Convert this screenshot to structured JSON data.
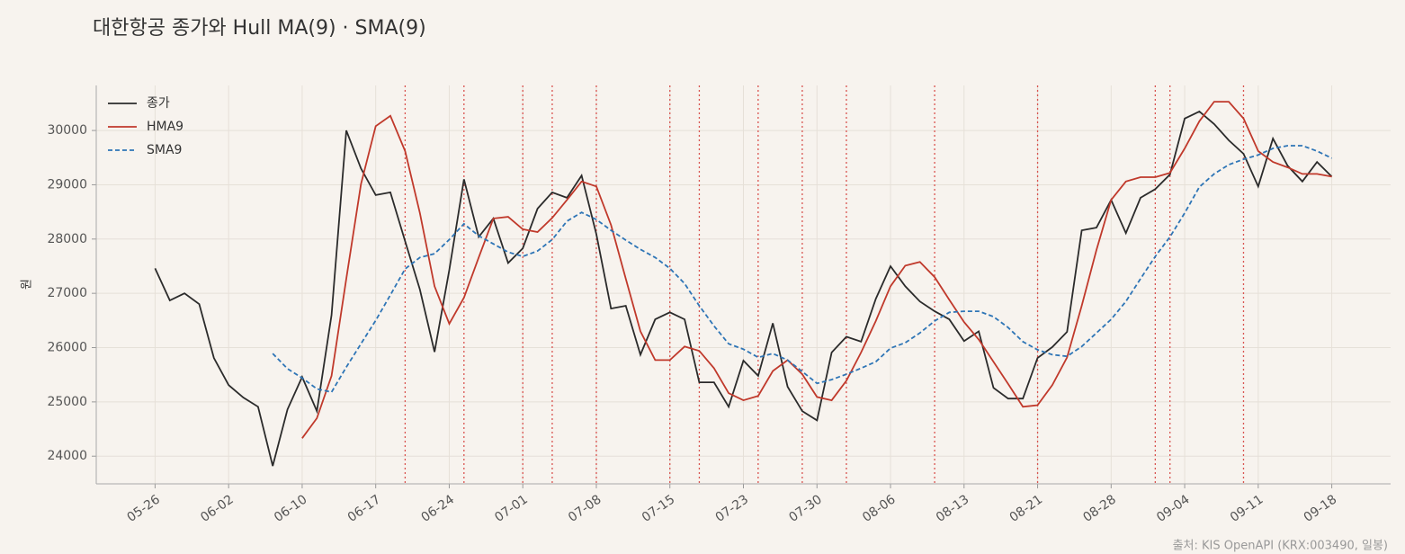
{
  "chart_data": {
    "type": "line",
    "title": "대한항공 종가와 Hull MA(9) · SMA(9)",
    "ylabel": "원",
    "source": "출처: KIS OpenAPI (KRX:003490, 일봉)",
    "categories": [
      "05-26",
      null,
      null,
      null,
      null,
      "06-02",
      null,
      null,
      null,
      null,
      "06-10",
      null,
      null,
      null,
      null,
      "06-17",
      null,
      null,
      null,
      null,
      "06-24",
      null,
      null,
      null,
      null,
      "07-01",
      null,
      null,
      null,
      null,
      "07-08",
      null,
      null,
      null,
      null,
      "07-15",
      null,
      null,
      null,
      null,
      "07-23",
      null,
      null,
      null,
      null,
      "07-30",
      null,
      null,
      null,
      null,
      "08-06",
      null,
      null,
      null,
      null,
      "08-13",
      null,
      null,
      null,
      null,
      "08-21",
      null,
      null,
      null,
      null,
      "08-28",
      null,
      null,
      null,
      null,
      "09-04",
      null,
      null,
      null,
      null,
      "09-11",
      null,
      null,
      null,
      null,
      "09-18"
    ],
    "ylim": [
      23490,
      30830
    ],
    "yticks": [
      24000,
      25000,
      26000,
      27000,
      28000,
      29000,
      30000
    ],
    "grid": true,
    "legend": "upper left",
    "signal_color": "#d9534f",
    "signals": [
      17,
      21,
      25,
      27,
      30,
      35,
      37,
      41,
      44,
      47,
      53,
      60,
      68,
      69,
      74
    ],
    "series": [
      {
        "name": "종가",
        "color": "#2b2b2b",
        "linestyle": "solid",
        "values": [
          27460,
          26870,
          27000,
          26800,
          25810,
          25310,
          25080,
          24910,
          23820,
          24860,
          25460,
          24830,
          26600,
          30000,
          29300,
          28810,
          28860,
          27960,
          27070,
          25920,
          27430,
          29100,
          28040,
          28380,
          27560,
          27830,
          28560,
          28860,
          28760,
          29170,
          28090,
          26720,
          26770,
          25870,
          26520,
          26650,
          26520,
          25360,
          25360,
          24910,
          25760,
          25480,
          26450,
          25280,
          24830,
          24660,
          25910,
          26200,
          26110,
          26900,
          27500,
          27130,
          26850,
          26670,
          26520,
          26120,
          26300,
          25260,
          25060,
          25060,
          25810,
          26010,
          26290,
          28160,
          28210,
          28720,
          28110,
          28760,
          28920,
          29190,
          30220,
          30350,
          30120,
          29820,
          29570,
          28970,
          29850,
          29350,
          29060,
          29420,
          29150
        ]
      },
      {
        "name": "HMA9",
        "color": "#c0392b",
        "linestyle": "solid",
        "values": [
          null,
          null,
          null,
          null,
          null,
          null,
          null,
          null,
          null,
          null,
          24330,
          24700,
          25480,
          27270,
          29010,
          30080,
          30270,
          29620,
          28480,
          27130,
          26440,
          26920,
          27660,
          28380,
          28410,
          28180,
          28130,
          28390,
          28720,
          29060,
          28970,
          28260,
          27270,
          26300,
          25770,
          25770,
          26020,
          25940,
          25620,
          25160,
          25030,
          25110,
          25570,
          25770,
          25510,
          25090,
          25030,
          25390,
          25910,
          26490,
          27130,
          27510,
          27580,
          27300,
          26880,
          26470,
          26150,
          25740,
          25330,
          24910,
          24940,
          25310,
          25820,
          26770,
          27800,
          28720,
          29060,
          29140,
          29140,
          29220,
          29670,
          30170,
          30530,
          30530,
          30220,
          29620,
          29420,
          29320,
          29200,
          29200,
          29150
        ]
      },
      {
        "name": "SMA9",
        "color": "#2e75b6",
        "linestyle": "dashed",
        "values": [
          null,
          null,
          null,
          null,
          null,
          null,
          null,
          null,
          25890,
          25610,
          25440,
          25240,
          25180,
          25640,
          26070,
          26500,
          26970,
          27450,
          27660,
          27730,
          27990,
          28280,
          28060,
          27910,
          27760,
          27680,
          27780,
          27990,
          28330,
          28490,
          28360,
          28160,
          27980,
          27810,
          27660,
          27460,
          27180,
          26770,
          26400,
          26070,
          25970,
          25820,
          25890,
          25770,
          25560,
          25340,
          25410,
          25510,
          25620,
          25740,
          25990,
          26090,
          26270,
          26490,
          26650,
          26670,
          26670,
          26570,
          26370,
          26110,
          25960,
          25870,
          25840,
          26020,
          26270,
          26520,
          26850,
          27270,
          27680,
          28040,
          28480,
          28960,
          29200,
          29370,
          29470,
          29550,
          29670,
          29720,
          29720,
          29620,
          29490
        ]
      }
    ]
  }
}
